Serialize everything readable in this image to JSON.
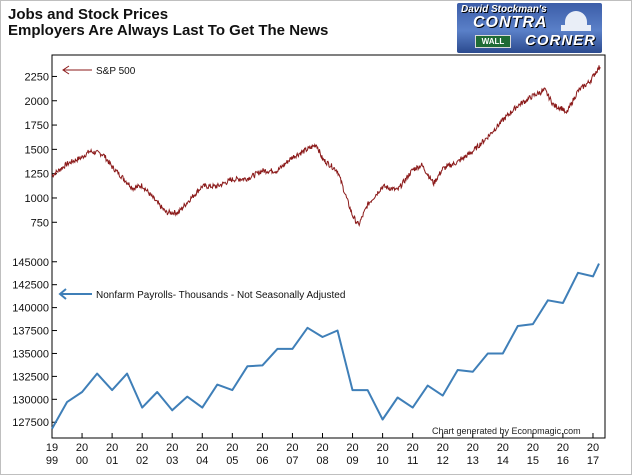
{
  "header": {
    "title_line1": "Jobs and Stock Prices",
    "title_line2": "Employers Are Always Last To Get The News"
  },
  "logo": {
    "line1": "David Stockman's",
    "line2": "CONTRA",
    "line3": "CORNER",
    "sign": "WALL"
  },
  "credit": "Chart generated by Economagic.com",
  "colors": {
    "sp500": "#8b1a1a",
    "payrolls": "#3f7fb8",
    "background": "#ffffff"
  },
  "chart_data": [
    {
      "type": "line",
      "legend": "S&P 500",
      "legend_placement": "top-left",
      "ylim": [
        650,
        2450
      ],
      "yticks": [
        750,
        1000,
        1250,
        1500,
        1750,
        2000,
        2250
      ],
      "x": [
        1999.0,
        1999.5,
        2000.0,
        2000.25,
        2000.7,
        2001.0,
        2001.7,
        2002.0,
        2002.5,
        2002.8,
        2003.2,
        2003.6,
        2004.0,
        2004.5,
        2005.0,
        2005.5,
        2006.0,
        2006.5,
        2007.0,
        2007.5,
        2007.8,
        2008.0,
        2008.5,
        2008.8,
        2009.0,
        2009.2,
        2009.5,
        2010.0,
        2010.5,
        2011.0,
        2011.3,
        2011.7,
        2012.0,
        2012.5,
        2013.0,
        2013.5,
        2014.0,
        2014.5,
        2015.0,
        2015.4,
        2015.7,
        2016.0,
        2016.1,
        2016.5,
        2016.9,
        2017.1,
        2017.25
      ],
      "y": [
        1230,
        1350,
        1420,
        1480,
        1450,
        1320,
        1100,
        1130,
        950,
        850,
        850,
        990,
        1120,
        1120,
        1190,
        1200,
        1280,
        1280,
        1420,
        1500,
        1550,
        1400,
        1280,
        1000,
        820,
        720,
        930,
        1120,
        1080,
        1290,
        1340,
        1150,
        1300,
        1370,
        1480,
        1630,
        1800,
        1950,
        2050,
        2110,
        1950,
        1920,
        1860,
        2100,
        2200,
        2300,
        2360
      ]
    },
    {
      "type": "line",
      "legend": "Nonfarm Payrolls- Thousands - Not Seasonally Adjusted",
      "legend_placement": "middle-left",
      "ylim": [
        126000,
        146500
      ],
      "yticks": [
        127500,
        130000,
        132500,
        135000,
        137500,
        140000,
        142500,
        145000
      ],
      "x_tick_labels": [
        [
          "19",
          "99"
        ],
        [
          "20",
          "00"
        ],
        [
          "20",
          "01"
        ],
        [
          "20",
          "02"
        ],
        [
          "20",
          "03"
        ],
        [
          "20",
          "04"
        ],
        [
          "20",
          "05"
        ],
        [
          "20",
          "06"
        ],
        [
          "20",
          "07"
        ],
        [
          "20",
          "08"
        ],
        [
          "20",
          "09"
        ],
        [
          "20",
          "10"
        ],
        [
          "20",
          "11"
        ],
        [
          "20",
          "12"
        ],
        [
          "20",
          "13"
        ],
        [
          "20",
          "14"
        ],
        [
          "20",
          "15"
        ],
        [
          "20",
          "16"
        ],
        [
          "20",
          "17"
        ]
      ],
      "x": [
        1999.0,
        1999.5,
        2000.0,
        2000.5,
        2001.0,
        2001.5,
        2002.0,
        2002.5,
        2003.0,
        2003.5,
        2004.0,
        2004.5,
        2005.0,
        2005.5,
        2006.0,
        2006.5,
        2007.0,
        2007.5,
        2008.0,
        2008.5,
        2009.0,
        2009.5,
        2010.0,
        2010.5,
        2011.0,
        2011.5,
        2012.0,
        2012.5,
        2013.0,
        2013.5,
        2014.0,
        2014.5,
        2015.0,
        2015.5,
        2016.0,
        2016.5,
        2017.0,
        2017.2
      ],
      "y": [
        126800,
        129700,
        130800,
        132800,
        131000,
        132800,
        129100,
        130800,
        128800,
        130300,
        129100,
        131600,
        131000,
        133600,
        133700,
        135500,
        135500,
        137800,
        136800,
        137500,
        131000,
        131000,
        127800,
        130200,
        129100,
        131500,
        130400,
        133200,
        133000,
        135000,
        135000,
        138000,
        138200,
        140800,
        140500,
        143800,
        143400,
        144800
      ]
    }
  ]
}
